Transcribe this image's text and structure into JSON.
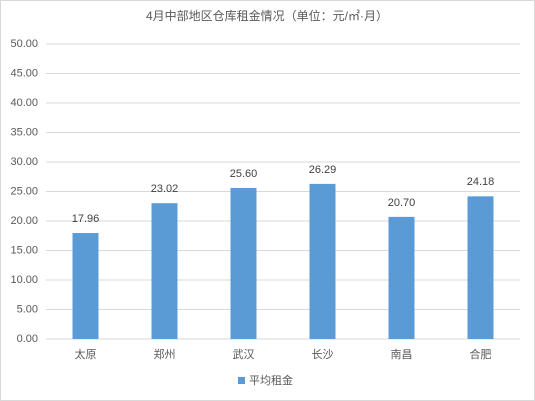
{
  "chart_data": {
    "type": "bar",
    "title": "4月中部地区仓库租金情况（单位：元/㎡·月）",
    "categories": [
      "太原",
      "郑州",
      "武汉",
      "长沙",
      "南昌",
      "合肥"
    ],
    "series": [
      {
        "name": "平均租金",
        "color": "#5b9bd5",
        "values": [
          17.96,
          23.02,
          25.6,
          26.29,
          20.7,
          24.18
        ],
        "value_labels": [
          "17.96",
          "23.02",
          "25.60",
          "26.29",
          "20.70",
          "24.18"
        ]
      }
    ],
    "ylim": [
      0,
      50
    ],
    "yticks": [
      {
        "value": 0,
        "label": "0.00"
      },
      {
        "value": 5,
        "label": "5.00"
      },
      {
        "value": 10,
        "label": "10.00"
      },
      {
        "value": 15,
        "label": "15.00"
      },
      {
        "value": 20,
        "label": "20.00"
      },
      {
        "value": 25,
        "label": "25.00"
      },
      {
        "value": 30,
        "label": "30.00"
      },
      {
        "value": 35,
        "label": "35.00"
      },
      {
        "value": 40,
        "label": "40.00"
      },
      {
        "value": 45,
        "label": "45.00"
      },
      {
        "value": 50,
        "label": "50.00"
      }
    ],
    "grid": true,
    "legend": "bottom"
  }
}
